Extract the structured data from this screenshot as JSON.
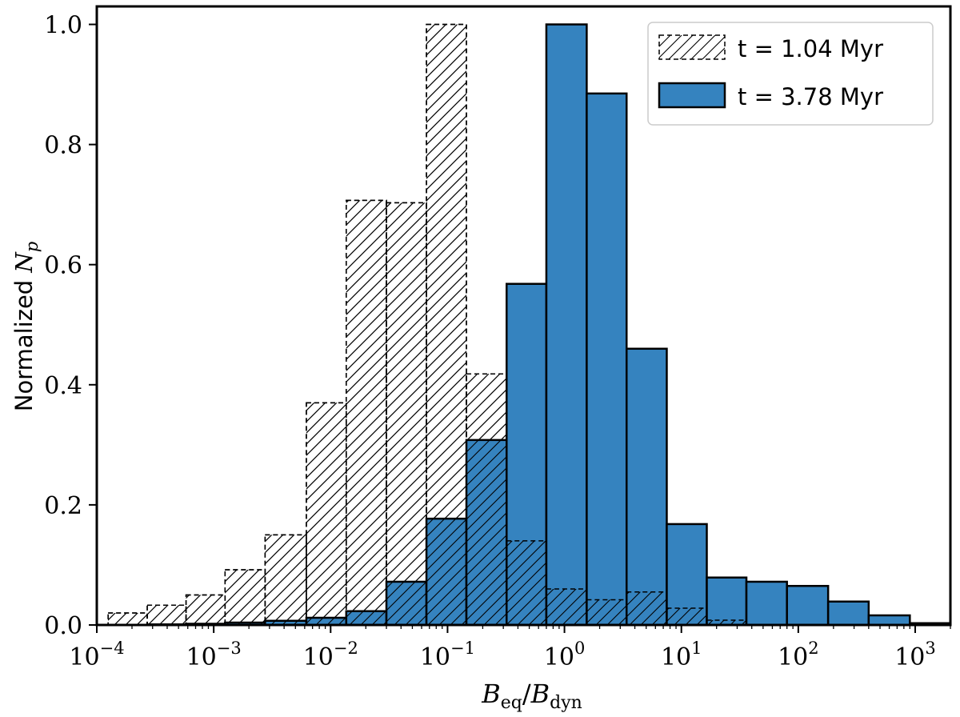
{
  "chart_data": {
    "type": "histogram",
    "xscale": "log",
    "xlim": [
      0.0001,
      2000
    ],
    "ylim": [
      0.0,
      1.03
    ],
    "xlabel": "B_eq/B_dyn",
    "ylabel": "Normalized N_p",
    "yticks": [
      "0.0",
      "0.2",
      "0.4",
      "0.6",
      "0.8",
      "1.0"
    ],
    "xticks": [
      {
        "base": "10",
        "exp": "−4"
      },
      {
        "base": "10",
        "exp": "−3"
      },
      {
        "base": "10",
        "exp": "−2"
      },
      {
        "base": "10",
        "exp": "−1"
      },
      {
        "base": "10",
        "exp": "0"
      },
      {
        "base": "10",
        "exp": "1"
      },
      {
        "base": "10",
        "exp": "2"
      },
      {
        "base": "10",
        "exp": "3"
      }
    ],
    "legend_position": "top-right",
    "series": [
      {
        "name": "t = 1.04 Myr",
        "style": "hatched-dashed",
        "color": "#000000",
        "bin_edges": [
          0.000125,
          0.00027,
          0.00058,
          0.00125,
          0.00275,
          0.0062,
          0.0136,
          0.03,
          0.066,
          0.145,
          0.32,
          0.7,
          1.55,
          3.4,
          7.5,
          16.5,
          36
        ],
        "values": [
          0.02,
          0.033,
          0.05,
          0.092,
          0.15,
          0.37,
          0.707,
          0.703,
          1.0,
          0.418,
          0.14,
          0.06,
          0.042,
          0.055,
          0.028,
          0.008
        ]
      },
      {
        "name": "t = 3.78 Myr",
        "style": "filled",
        "color": "#3583bf",
        "bin_edges": [
          0.000125,
          0.00027,
          0.00058,
          0.00125,
          0.00275,
          0.0062,
          0.0136,
          0.03,
          0.066,
          0.145,
          0.32,
          0.7,
          1.55,
          3.4,
          7.5,
          16.5,
          36,
          80,
          180,
          400,
          900,
          2000
        ],
        "values": [
          0.0,
          0.001,
          0.002,
          0.004,
          0.007,
          0.012,
          0.023,
          0.072,
          0.177,
          0.308,
          0.568,
          1.0,
          0.885,
          0.46,
          0.168,
          0.079,
          0.072,
          0.065,
          0.039,
          0.016,
          0.003
        ]
      }
    ]
  }
}
